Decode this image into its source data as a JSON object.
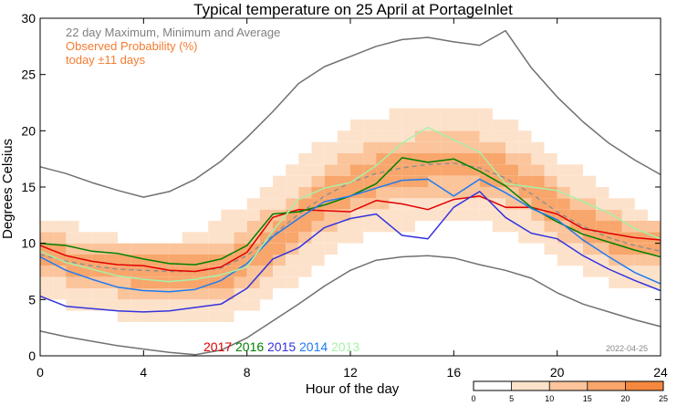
{
  "chart_data": {
    "type": "line",
    "title": "Typical temperature on 25 April at PortageInlet",
    "xlabel": "Hour of the day",
    "ylabel": "Degrees Celsius",
    "xlim": [
      0,
      24
    ],
    "ylim": [
      0,
      30
    ],
    "xticks": [
      0,
      4,
      8,
      12,
      16,
      20,
      24
    ],
    "yticks": [
      0,
      5,
      10,
      15,
      20,
      25,
      30
    ],
    "xtick_labels": [
      "0",
      "4",
      "8",
      "12",
      "16",
      "20",
      "24"
    ],
    "ytick_labels": [
      "0",
      "5",
      "10",
      "15",
      "20",
      "25",
      "30"
    ],
    "legend": {
      "range_label": "22 day Maximum, Minimum and Average",
      "prob_label": "Observed Probability (%)",
      "window_label": "today ±11 days",
      "range_color": "#808080",
      "prob_color": "#f47c30"
    },
    "date_stamp": "2022-04-25",
    "colorbar": {
      "ticks": [
        0,
        5,
        10,
        15,
        20,
        25
      ],
      "tick_labels": [
        "0",
        "5",
        "10",
        "15",
        "20",
        "25"
      ],
      "colors": [
        "#ffffff",
        "#fde2cb",
        "#fbc49b",
        "#f8a66c",
        "#f5883e",
        "#f26a10"
      ]
    },
    "band_color": "#fbc49b",
    "x": [
      0,
      1,
      2,
      3,
      4,
      5,
      6,
      7,
      8,
      9,
      10,
      11,
      12,
      13,
      14,
      15,
      16,
      17,
      18,
      19,
      20,
      21,
      22,
      23,
      24
    ],
    "series": [
      {
        "name": "Maximum",
        "color": "#707070",
        "dashed": false,
        "values": [
          16.8,
          16.2,
          15.4,
          14.7,
          14.1,
          14.6,
          15.7,
          17.3,
          19.4,
          21.7,
          24.2,
          25.7,
          26.6,
          27.5,
          28.1,
          28.3,
          27.9,
          27.6,
          28.9,
          25.6,
          23.0,
          20.8,
          18.9,
          17.4,
          16.1
        ]
      },
      {
        "name": "Minimum",
        "color": "#707070",
        "dashed": false,
        "values": [
          2.2,
          1.7,
          1.3,
          0.9,
          0.6,
          0.3,
          0.1,
          0.5,
          1.6,
          3.1,
          4.6,
          6.2,
          7.6,
          8.5,
          8.8,
          8.9,
          8.7,
          8.1,
          7.6,
          6.9,
          5.6,
          4.6,
          3.9,
          3.2,
          2.6
        ]
      },
      {
        "name": "Average",
        "color": "#909090",
        "dashed": true,
        "values": [
          9.0,
          8.4,
          8.0,
          7.7,
          7.6,
          7.5,
          7.5,
          7.8,
          8.9,
          10.7,
          12.6,
          14.2,
          15.4,
          16.2,
          16.7,
          17.0,
          17.1,
          16.7,
          15.8,
          14.4,
          12.8,
          11.5,
          10.5,
          9.8,
          9.3
        ]
      },
      {
        "name": "2017",
        "color": "#e00000",
        "dashed": false,
        "values": [
          9.8,
          8.9,
          8.4,
          8.1,
          8.0,
          7.6,
          7.5,
          7.9,
          9.2,
          12.3,
          13.0,
          12.9,
          12.8,
          13.8,
          13.5,
          13.0,
          13.9,
          14.2,
          13.2,
          13.2,
          12.6,
          11.3,
          10.9,
          10.5,
          10.3
        ]
      },
      {
        "name": "2016",
        "color": "#008000",
        "dashed": false,
        "values": [
          10.0,
          9.8,
          9.3,
          9.1,
          8.6,
          8.2,
          8.1,
          8.6,
          9.8,
          12.6,
          12.8,
          13.4,
          14.2,
          15.3,
          17.6,
          17.2,
          17.5,
          16.4,
          15.1,
          13.2,
          11.9,
          10.8,
          10.1,
          9.4,
          8.8
        ]
      },
      {
        "name": "2015",
        "color": "#3333dd",
        "dashed": false,
        "values": [
          5.3,
          4.4,
          4.2,
          4.0,
          3.9,
          4.0,
          4.3,
          4.6,
          6.0,
          8.6,
          9.6,
          11.4,
          12.2,
          12.6,
          10.7,
          10.4,
          13.2,
          14.6,
          12.3,
          10.9,
          10.4,
          8.9,
          7.7,
          6.7,
          5.8
        ]
      },
      {
        "name": "2014",
        "color": "#1e7bf0",
        "dashed": false,
        "values": [
          8.8,
          7.6,
          6.8,
          6.1,
          5.8,
          5.7,
          5.9,
          6.7,
          8.2,
          10.6,
          12.2,
          13.7,
          14.2,
          14.9,
          15.6,
          15.7,
          14.2,
          15.7,
          14.5,
          13.1,
          12.1,
          10.3,
          8.8,
          7.4,
          6.4
        ]
      },
      {
        "name": "2013",
        "color": "#a8f0a8",
        "dashed": false,
        "values": [
          9.3,
          8.3,
          7.7,
          7.1,
          6.8,
          6.6,
          6.8,
          7.2,
          7.9,
          11.1,
          13.9,
          14.9,
          15.4,
          16.9,
          18.9,
          20.3,
          19.2,
          18.1,
          15.3,
          15.0,
          14.7,
          13.7,
          12.7,
          11.3,
          10.4
        ]
      }
    ]
  }
}
